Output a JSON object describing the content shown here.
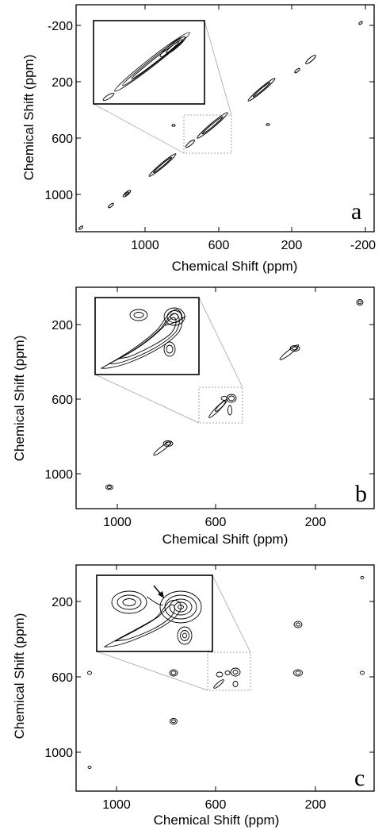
{
  "figure": {
    "panels": [
      {
        "id": "a",
        "letter": "a",
        "xlabel": "Chemical Shift (ppm)",
        "ylabel": "Chemical Shift (ppm)",
        "xticks": [
          "1000",
          "600",
          "200",
          "-200"
        ],
        "yticks": [
          "-200",
          "200",
          "600",
          "1000"
        ]
      },
      {
        "id": "b",
        "letter": "b",
        "xlabel": "Chemical Shift (ppm)",
        "ylabel": "Chemical Shift (ppm)",
        "xticks": [
          "1000",
          "600",
          "200"
        ],
        "yticks": [
          "200",
          "600",
          "1000"
        ]
      },
      {
        "id": "c",
        "letter": "c",
        "xlabel": "Chemical Shift (ppm)",
        "ylabel": "Chemical Shift (ppm)",
        "xticks": [
          "1000",
          "600",
          "200"
        ],
        "yticks": [
          "200",
          "600",
          "1000"
        ]
      }
    ]
  },
  "chart_data": [
    {
      "type": "scatter",
      "panel": "a",
      "xlim": [
        1380,
        -240
      ],
      "ylim": [
        1380,
        -240
      ],
      "x_ticks": [
        1000,
        600,
        200,
        -200
      ],
      "y_ticks": [
        -200,
        200,
        600,
        1000
      ],
      "peaks": [
        {
          "x": 1360,
          "y": 1360
        },
        {
          "x": 1165,
          "y": 1165
        },
        {
          "x": 1055,
          "y": 1055
        },
        {
          "x": 860,
          "y": 860
        },
        {
          "x": 690,
          "y": 690
        },
        {
          "x": 570,
          "y": 570
        },
        {
          "x": 320,
          "y": 320
        },
        {
          "x": 150,
          "y": 150
        },
        {
          "x": 75,
          "y": 75
        },
        {
          "x": -190,
          "y": -190
        },
        {
          "x": 830,
          "y": 490
        },
        {
          "x": 320,
          "y": 490
        }
      ],
      "inset_region": {
        "x": [
          720,
          480
        ],
        "y": [
          480,
          720
        ]
      }
    },
    {
      "type": "scatter",
      "panel": "b",
      "xlim": [
        1230,
        30
      ],
      "ylim": [
        30,
        1230
      ],
      "x_ticks": [
        1000,
        600,
        200
      ],
      "y_ticks": [
        200,
        600,
        1000
      ],
      "peaks": [
        {
          "x": 1080,
          "y": 1080
        },
        {
          "x": 820,
          "y": 820
        },
        {
          "x": 570,
          "y": 570
        },
        {
          "x": 600,
          "y": 570
        },
        {
          "x": 570,
          "y": 620
        },
        {
          "x": 310,
          "y": 310
        },
        {
          "x": 70,
          "y": 70
        }
      ],
      "inset_region": {
        "x": [
          660,
          510
        ],
        "y": [
          520,
          690
        ]
      }
    },
    {
      "type": "scatter",
      "panel": "c",
      "xlim": [
        1230,
        30
      ],
      "ylim": [
        30,
        1230
      ],
      "x_ticks": [
        1000,
        600,
        200
      ],
      "y_ticks": [
        200,
        600,
        1000
      ],
      "peaks": [
        {
          "x": 1080,
          "y": 580
        },
        {
          "x": 820,
          "y": 580
        },
        {
          "x": 570,
          "y": 580
        },
        {
          "x": 600,
          "y": 580
        },
        {
          "x": 310,
          "y": 580
        },
        {
          "x": 310,
          "y": 340
        },
        {
          "x": 70,
          "y": 580
        },
        {
          "x": 70,
          "y": 90
        },
        {
          "x": 820,
          "y": 820
        },
        {
          "x": 1080,
          "y": 1080
        },
        {
          "x": 575,
          "y": 610
        }
      ],
      "inset_region": {
        "x": [
          660,
          510
        ],
        "y": [
          520,
          690
        ]
      }
    }
  ]
}
